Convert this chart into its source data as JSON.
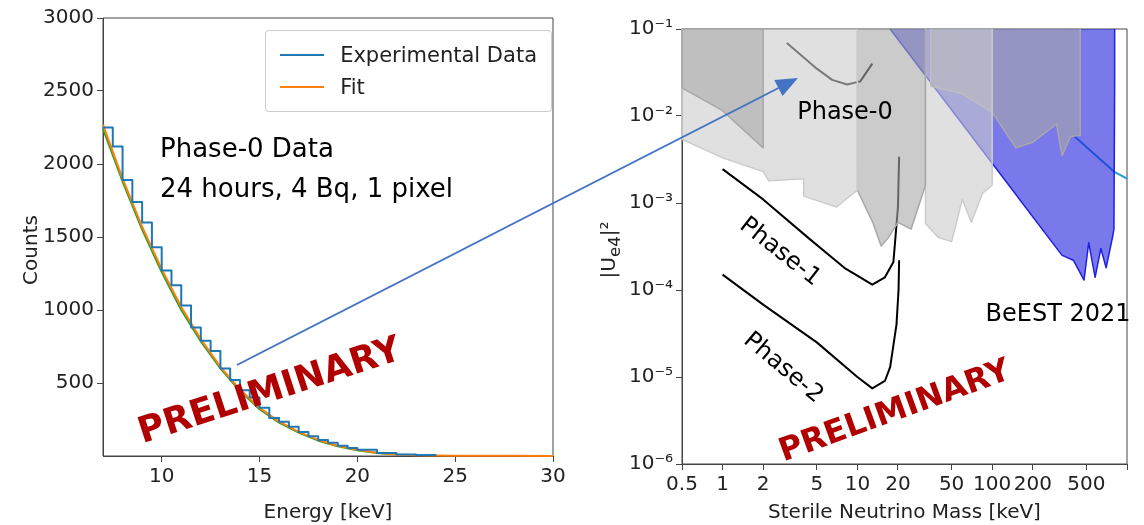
{
  "chart_data": [
    {
      "type": "line",
      "xlabel": "Energy [keV]",
      "ylabel": "Counts",
      "xlim": [
        7,
        30
      ],
      "xticks": [
        10,
        15,
        20,
        25,
        30
      ],
      "ylim": [
        0,
        3000
      ],
      "yticks": [
        500,
        1000,
        1500,
        2000,
        2500,
        3000
      ],
      "grid": false,
      "legend": "top right",
      "annotations": [
        "Phase-0 Data",
        "24 hours, 4 Bq, 1 pixel",
        "PRELIMINARY"
      ],
      "series": [
        {
          "name": "Experimental Data",
          "type": "step",
          "color": "#1f77b4",
          "x": [
            7,
            7.5,
            8,
            8.5,
            9,
            9.5,
            10,
            10.5,
            11,
            11.5,
            12,
            12.5,
            13,
            13.5,
            14,
            14.5,
            15,
            15.5,
            16,
            16.5,
            17,
            17.5,
            18,
            18.5,
            19,
            19.5,
            20,
            21,
            22,
            23,
            24
          ],
          "values": [
            2250,
            2120,
            1890,
            1740,
            1600,
            1430,
            1270,
            1170,
            1030,
            880,
            790,
            720,
            600,
            520,
            450,
            400,
            330,
            260,
            235,
            200,
            165,
            135,
            110,
            90,
            70,
            55,
            42,
            20,
            10,
            6,
            3
          ]
        },
        {
          "name": "Fit",
          "type": "line",
          "color": "#ff7f0e",
          "x": [
            7,
            8,
            9,
            10,
            11,
            12,
            13,
            14,
            15,
            16,
            17,
            18,
            19,
            20,
            21,
            22,
            23,
            25,
            30
          ],
          "values": [
            2270,
            1900,
            1570,
            1280,
            1020,
            800,
            610,
            455,
            330,
            235,
            165,
            110,
            70,
            42,
            22,
            11,
            5,
            2,
            0
          ]
        },
        {
          "type": "line",
          "color": "#2ca02c",
          "x": [
            7,
            8,
            9,
            10,
            11,
            12,
            13,
            14,
            15,
            16,
            17,
            18,
            19,
            20,
            21,
            22
          ],
          "values": [
            2240,
            1880,
            1550,
            1260,
            1000,
            785,
            600,
            445,
            320,
            228,
            160,
            105,
            67,
            40,
            20,
            10
          ]
        }
      ]
    },
    {
      "type": "line",
      "xlabel": "Sterile Neutrino Mass [keV]",
      "ylabel": "|U$_{e4}$|²",
      "log": "xy",
      "xlim": [
        0.5,
        1000
      ],
      "xticks": [
        0.5,
        1,
        2,
        5,
        10,
        20,
        50,
        100,
        200,
        500,
        {
          "value": 1000,
          "label": null
        }
      ],
      "ylim": [
        1e-06,
        0.1
      ],
      "yticks": [
        {
          "value": 1e-06,
          "label": "10⁻⁶"
        },
        {
          "value": 1e-05,
          "label": "10⁻⁵"
        },
        {
          "value": 0.0001,
          "label": "10⁻⁴"
        },
        {
          "value": 0.001,
          "label": "10⁻³"
        },
        {
          "value": 0.01,
          "label": "10⁻²"
        },
        {
          "value": 0.1,
          "label": "10⁻¹"
        }
      ],
      "grid": false,
      "annotations": [
        "PRELIMINARY"
      ],
      "series": [
        {
          "type": "area",
          "color": "#a8a8a8",
          "x": [
            0.5,
            0.5,
            1,
            2,
            2
          ],
          "values": [
            0.1,
            0.021,
            0.0115,
            0.0043,
            0.1
          ]
        },
        {
          "type": "area",
          "color": "#cccccc",
          "x": [
            0.5,
            0.5,
            1,
            2,
            2.2,
            4,
            4,
            7,
            10,
            10
          ],
          "values": [
            0.1,
            0.0054,
            0.0033,
            0.0023,
            0.0018,
            0.0019,
            0.0012,
            0.0009,
            0.0014,
            0.1
          ]
        },
        {
          "type": "area",
          "color": "#a8a8a8",
          "x": [
            10,
            10,
            13,
            15,
            17,
            20,
            25,
            32,
            32
          ],
          "values": [
            0.1,
            0.0014,
            0.0006,
            0.00032,
            0.0004,
            0.0006,
            0.0005,
            0.0016,
            0.1
          ]
        },
        {
          "type": "area",
          "color": "#cccccc",
          "x": [
            32,
            32,
            40,
            50,
            60,
            70,
            85,
            100,
            100
          ],
          "values": [
            0.1,
            0.00058,
            0.0004,
            0.00036,
            0.0011,
            0.0006,
            0.0013,
            0.0016,
            0.1
          ]
        },
        {
          "type": "area",
          "color": "#a8a8a8",
          "x": [
            35,
            35,
            60,
            100,
            150,
            200,
            300,
            330,
            380,
            450,
            450
          ],
          "values": [
            0.1,
            0.022,
            0.018,
            0.011,
            0.0043,
            0.005,
            0.0081,
            0.0035,
            0.0058,
            0.006,
            0.1
          ]
        },
        {
          "name": "BeEST 2021",
          "type": "area",
          "color": "#2020e0",
          "x": [
            17.5,
            330,
            400,
            480,
            520,
            580,
            640,
            700,
            780,
            800,
            810,
            810
          ],
          "values": [
            0.1,
            0.00025,
            0.00022,
            0.00013,
            0.00035,
            0.00014,
            0.0003,
            0.00018,
            0.0004,
            0.0005,
            0.025,
            0.1
          ]
        },
        {
          "type": "line",
          "color": "#1f9fd0",
          "x": [
            405,
            800,
            1000
          ],
          "values": [
            0.0059,
            0.0023,
            0.0019
          ]
        },
        {
          "name": "Phase-0",
          "type": "line",
          "color": "#000000",
          "x": [
            3,
            4,
            5,
            6.5,
            8.4,
            10.5,
            12.9
          ],
          "values": [
            0.069,
            0.047,
            0.035,
            0.026,
            0.023,
            0.025,
            0.04
          ]
        },
        {
          "name": "Phase-1",
          "type": "line",
          "color": "#000000",
          "x": [
            1,
            2,
            4.3,
            8,
            12.9,
            16,
            18.5,
            20,
            20.4
          ],
          "values": [
            0.00245,
            0.0011,
            0.0004,
            0.00018,
            0.000115,
            0.00014,
            0.00021,
            0.0009,
            0.0034
          ]
        },
        {
          "name": "Phase-2",
          "type": "line",
          "color": "#000000",
          "x": [
            1,
            2,
            5,
            10,
            12.9,
            16,
            17.5,
            19.5,
            20.2,
            20.4
          ],
          "values": [
            0.00015,
            6.8e-05,
            2.5e-05,
            1e-05,
            7.4e-06,
            9e-06,
            1.3e-05,
            4e-05,
            0.0001,
            0.00022
          ]
        }
      ]
    }
  ]
}
